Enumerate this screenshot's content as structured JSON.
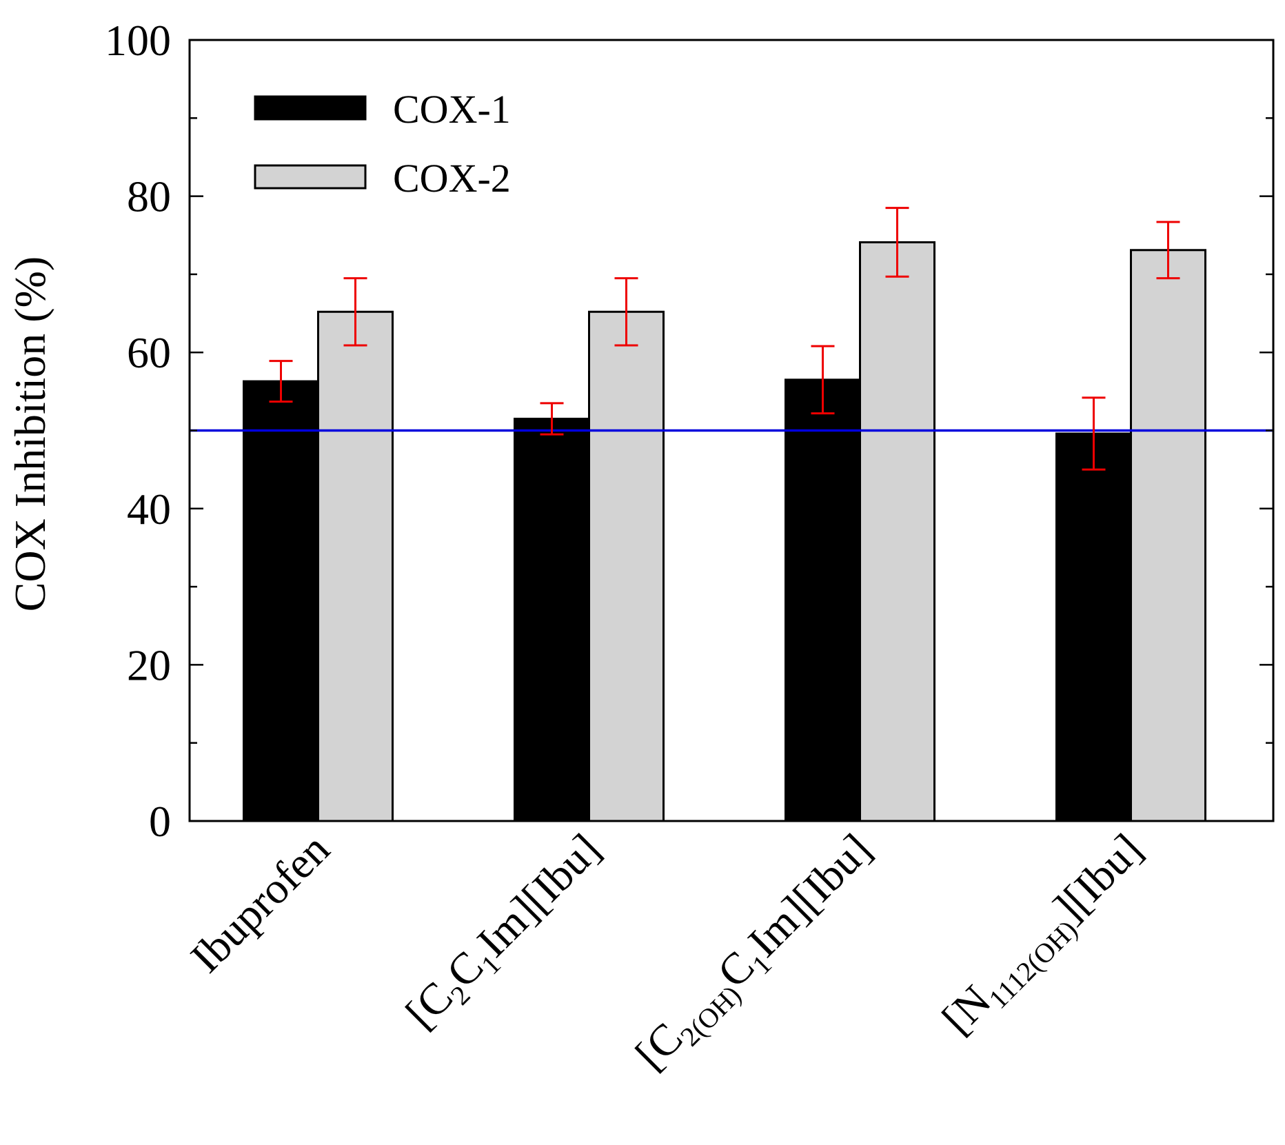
{
  "chart_data": {
    "type": "bar",
    "ylabel": "COX Inhibition (%)",
    "xlabel": "",
    "ylim": [
      0,
      100
    ],
    "y_ticks": [
      "0",
      "20",
      "40",
      "60",
      "80",
      "100"
    ],
    "categories": [
      "Ibuprofen",
      "[C2C1Im][Ibu]",
      "[C2(OH)C1Im][Ibu]",
      "[N1112(OH)][Ibu]"
    ],
    "category_labels": [
      [
        {
          "t": "Ibuprofen",
          "sub": false
        }
      ],
      [
        {
          "t": "[C",
          "sub": false
        },
        {
          "t": "2",
          "sub": true
        },
        {
          "t": "C",
          "sub": false
        },
        {
          "t": "1",
          "sub": true
        },
        {
          "t": "Im][Ibu]",
          "sub": false
        }
      ],
      [
        {
          "t": "[C",
          "sub": false
        },
        {
          "t": "2(OH)",
          "sub": true
        },
        {
          "t": "C",
          "sub": false
        },
        {
          "t": "1",
          "sub": true
        },
        {
          "t": "Im][Ibu]",
          "sub": false
        }
      ],
      [
        {
          "t": "[N",
          "sub": false
        },
        {
          "t": "1112(OH)",
          "sub": true
        },
        {
          "t": "][Ibu]",
          "sub": false
        }
      ]
    ],
    "series": [
      {
        "name": "COX-1",
        "color": "#000000",
        "values": [
          56.3,
          51.5,
          56.5,
          49.6
        ],
        "errors": [
          2.6,
          2.0,
          4.3,
          4.6
        ]
      },
      {
        "name": "COX-2",
        "color": "#d3d3d3",
        "values": [
          65.2,
          65.2,
          74.1,
          73.1
        ],
        "errors": [
          4.3,
          4.3,
          4.4,
          3.6
        ]
      }
    ],
    "reference_line": {
      "y": 50,
      "color": "#0000dd"
    },
    "error_bar_color": "#ee0000",
    "grid": false,
    "legend_position": "top-left"
  }
}
